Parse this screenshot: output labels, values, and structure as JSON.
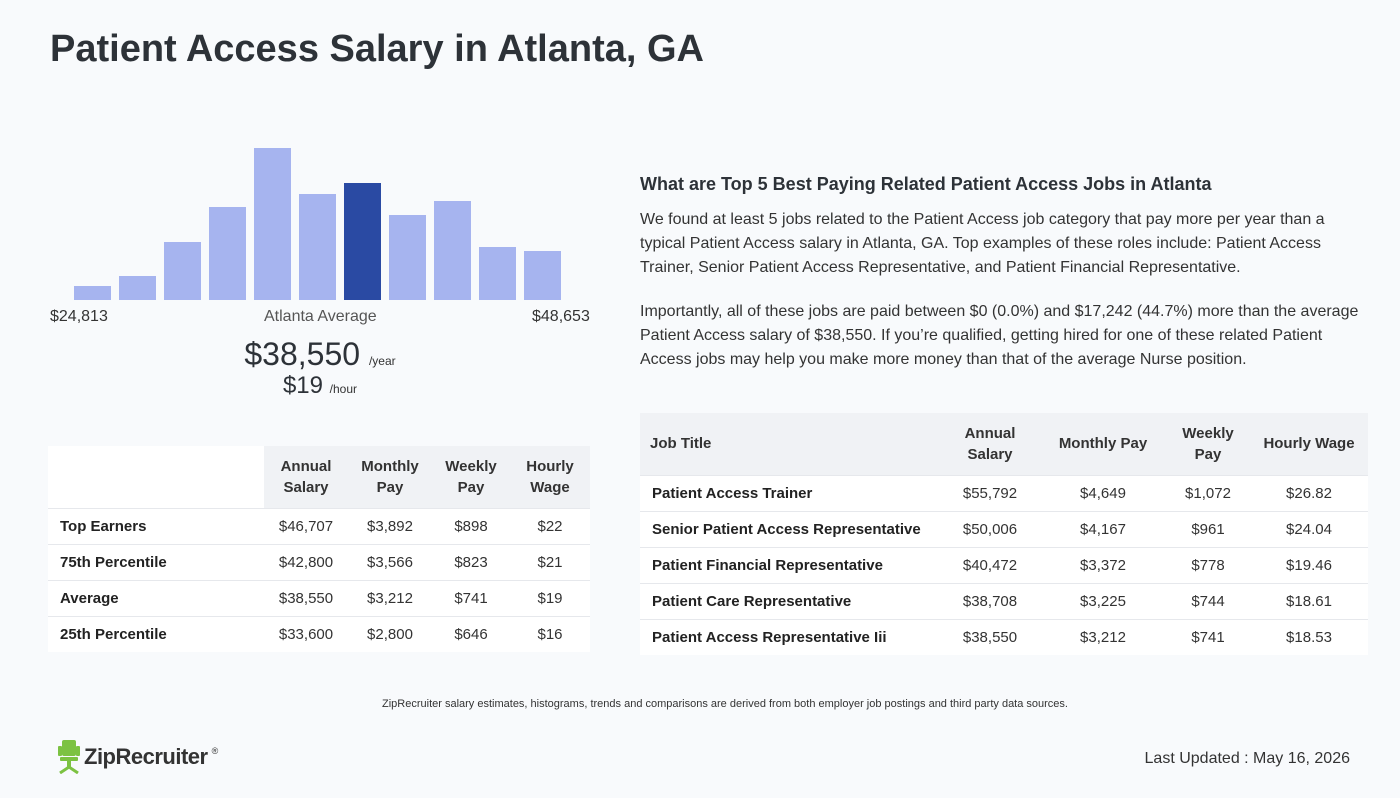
{
  "page": {
    "title": "Patient Access Salary in Atlanta, GA"
  },
  "histogram": {
    "min_label": "$24,813",
    "max_label": "$48,653",
    "center_label": "Atlanta Average",
    "bar_levels": [
      0.09,
      0.16,
      0.38,
      0.61,
      1.0,
      0.7,
      0.77,
      0.56,
      0.65,
      0.35,
      0.32
    ],
    "highlight_index": 6,
    "colors": {
      "bar": "#a6b4ef",
      "highlight": "#2a4aa3"
    }
  },
  "summary": {
    "annual": "$38,550",
    "annual_unit": "/year",
    "hourly": "$19",
    "hourly_unit": "/hour"
  },
  "percentile_table": {
    "headers": [
      "",
      "Annual Salary",
      "Monthly Pay",
      "Weekly Pay",
      "Hourly Wage"
    ],
    "rows": [
      [
        "Top Earners",
        "$46,707",
        "$3,892",
        "$898",
        "$22"
      ],
      [
        "75th Percentile",
        "$42,800",
        "$3,566",
        "$823",
        "$21"
      ],
      [
        "Average",
        "$38,550",
        "$3,212",
        "$741",
        "$19"
      ],
      [
        "25th Percentile",
        "$33,600",
        "$2,800",
        "$646",
        "$16"
      ]
    ]
  },
  "related": {
    "heading": "What are Top 5 Best Paying Related Patient Access Jobs in Atlanta",
    "para1": "We found at least 5 jobs related to the Patient Access job category that pay more per year than a typical Patient Access salary in Atlanta, GA. Top examples of these roles include: Patient Access Trainer, Senior Patient Access Representative, and Patient Financial Representative.",
    "para2": "Importantly, all of these jobs are paid between $0 (0.0%) and $17,242 (44.7%) more than the average Patient Access salary of $38,550. If you’re qualified, getting hired for one of these related Patient Access jobs may help you make more money than that of the average Nurse position."
  },
  "jobs_table": {
    "headers": [
      "Job Title",
      "Annual Salary",
      "Monthly Pay",
      "Weekly Pay",
      "Hourly Wage"
    ],
    "rows": [
      [
        "Patient Access Trainer",
        "$55,792",
        "$4,649",
        "$1,072",
        "$26.82"
      ],
      [
        "Senior Patient Access Representative",
        "$50,006",
        "$4,167",
        "$961",
        "$24.04"
      ],
      [
        "Patient Financial Representative",
        "$40,472",
        "$3,372",
        "$778",
        "$19.46"
      ],
      [
        "Patient Care Representative",
        "$38,708",
        "$3,225",
        "$744",
        "$18.61"
      ],
      [
        "Patient Access Representative Iii",
        "$38,550",
        "$3,212",
        "$741",
        "$18.53"
      ]
    ]
  },
  "footer": {
    "disclaimer": "ZipRecruiter salary estimates, histograms, trends and comparisons are derived from both employer job postings and third party data sources.",
    "logo_text": "ZipRecruiter",
    "logo_mark": "®",
    "logo_icon": "chair-icon",
    "last_updated": "Last Updated : May 16, 2026",
    "brand_color": "#7cc242"
  }
}
